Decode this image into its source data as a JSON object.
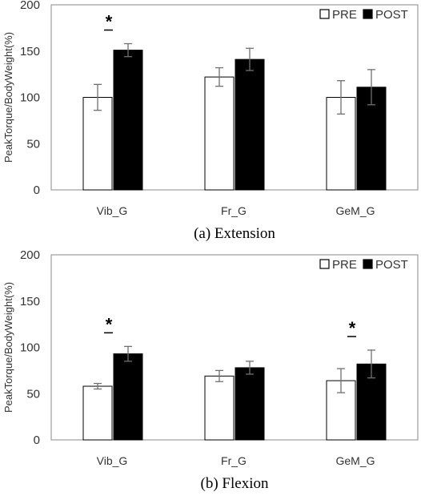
{
  "chart_data": [
    {
      "type": "bar",
      "caption": "(a) Extension",
      "ylabel": "PeakTorque/BodyWeight(%)",
      "xlabel": "",
      "ylim": [
        0,
        200
      ],
      "yticks": [
        "0",
        "50",
        "100",
        "150",
        "200"
      ],
      "categories": [
        "Vib_G",
        "Fr_G",
        "GeM_G"
      ],
      "legend_position": "top-right",
      "grid": false,
      "series": [
        {
          "name": "PRE",
          "color": "#ffffff",
          "values": [
            100,
            122,
            100
          ],
          "errors": [
            14,
            10,
            18
          ]
        },
        {
          "name": "POST",
          "color": "#000000",
          "values": [
            151,
            141,
            111
          ],
          "errors": [
            7,
            12,
            19
          ]
        }
      ],
      "significance": [
        {
          "category": "Vib_G",
          "label": "*"
        }
      ]
    },
    {
      "type": "bar",
      "caption": "(b) Flexion",
      "ylabel": "PeakTorque/BodyWeight(%)",
      "xlabel": "",
      "ylim": [
        0,
        200
      ],
      "yticks": [
        "0",
        "50",
        "100",
        "150",
        "200"
      ],
      "categories": [
        "Vib_G",
        "Fr_G",
        "GeM_G"
      ],
      "legend_position": "top-right",
      "grid": false,
      "series": [
        {
          "name": "PRE",
          "color": "#ffffff",
          "values": [
            58,
            69,
            64
          ],
          "errors": [
            3,
            6,
            13
          ]
        },
        {
          "name": "POST",
          "color": "#000000",
          "values": [
            93,
            78,
            82
          ],
          "errors": [
            8,
            7,
            15
          ]
        }
      ],
      "significance": [
        {
          "category": "Vib_G",
          "label": "*"
        },
        {
          "category": "GeM_G",
          "label": "*"
        }
      ]
    }
  ]
}
